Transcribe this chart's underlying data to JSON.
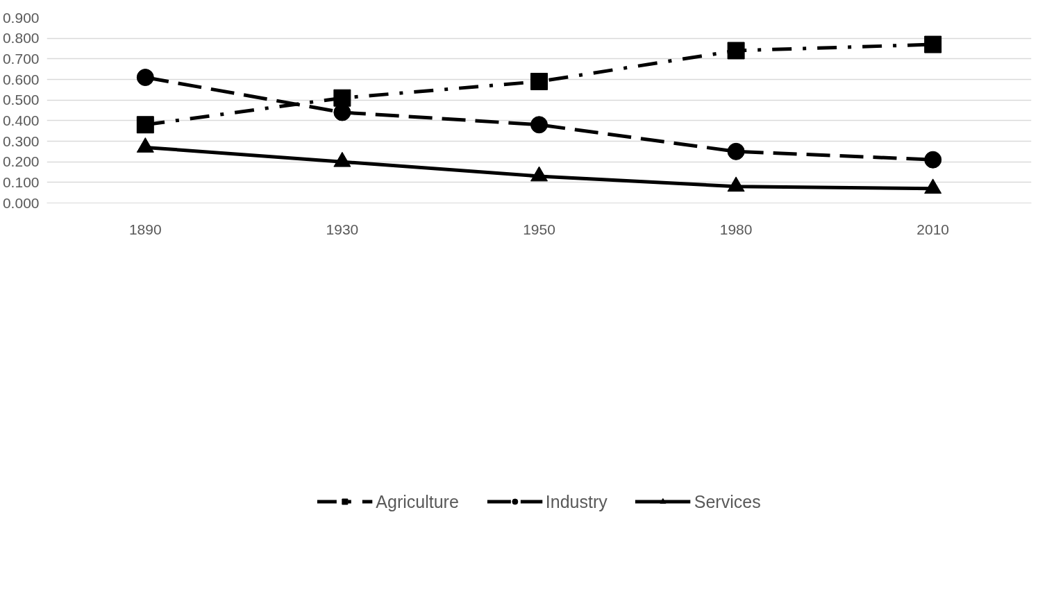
{
  "chart_data": {
    "type": "line",
    "categories": [
      "1890",
      "1930",
      "1950",
      "1980",
      "2010"
    ],
    "series": [
      {
        "name": "Agriculture",
        "color": "#000000",
        "marker": "square",
        "line_style": "dashdot",
        "values": [
          0.38,
          0.51,
          0.59,
          0.74,
          0.77
        ]
      },
      {
        "name": "Industry",
        "color": "#000000",
        "marker": "circle",
        "line_style": "dashed",
        "values": [
          0.61,
          0.44,
          0.38,
          0.25,
          0.21
        ]
      },
      {
        "name": "Services",
        "color": "#000000",
        "marker": "triangle",
        "line_style": "solid",
        "values": [
          0.27,
          0.2,
          0.13,
          0.08,
          0.07
        ]
      }
    ],
    "ylim": [
      0,
      0.9
    ],
    "yticks": [
      {
        "value": 0,
        "label": "0.000"
      },
      {
        "value": 0.1,
        "label": "0.100"
      },
      {
        "value": 0.2,
        "label": "0.200"
      },
      {
        "value": 0.3,
        "label": "0.300"
      },
      {
        "value": 0.4,
        "label": "0.400"
      },
      {
        "value": 0.5,
        "label": "0.500"
      },
      {
        "value": 0.6,
        "label": "0.600"
      },
      {
        "value": 0.7,
        "label": "0.700"
      },
      {
        "value": 0.8,
        "label": "0.800"
      },
      {
        "value": 0.9,
        "label": "0.900"
      }
    ],
    "grid": "y",
    "legend": "bottom"
  }
}
